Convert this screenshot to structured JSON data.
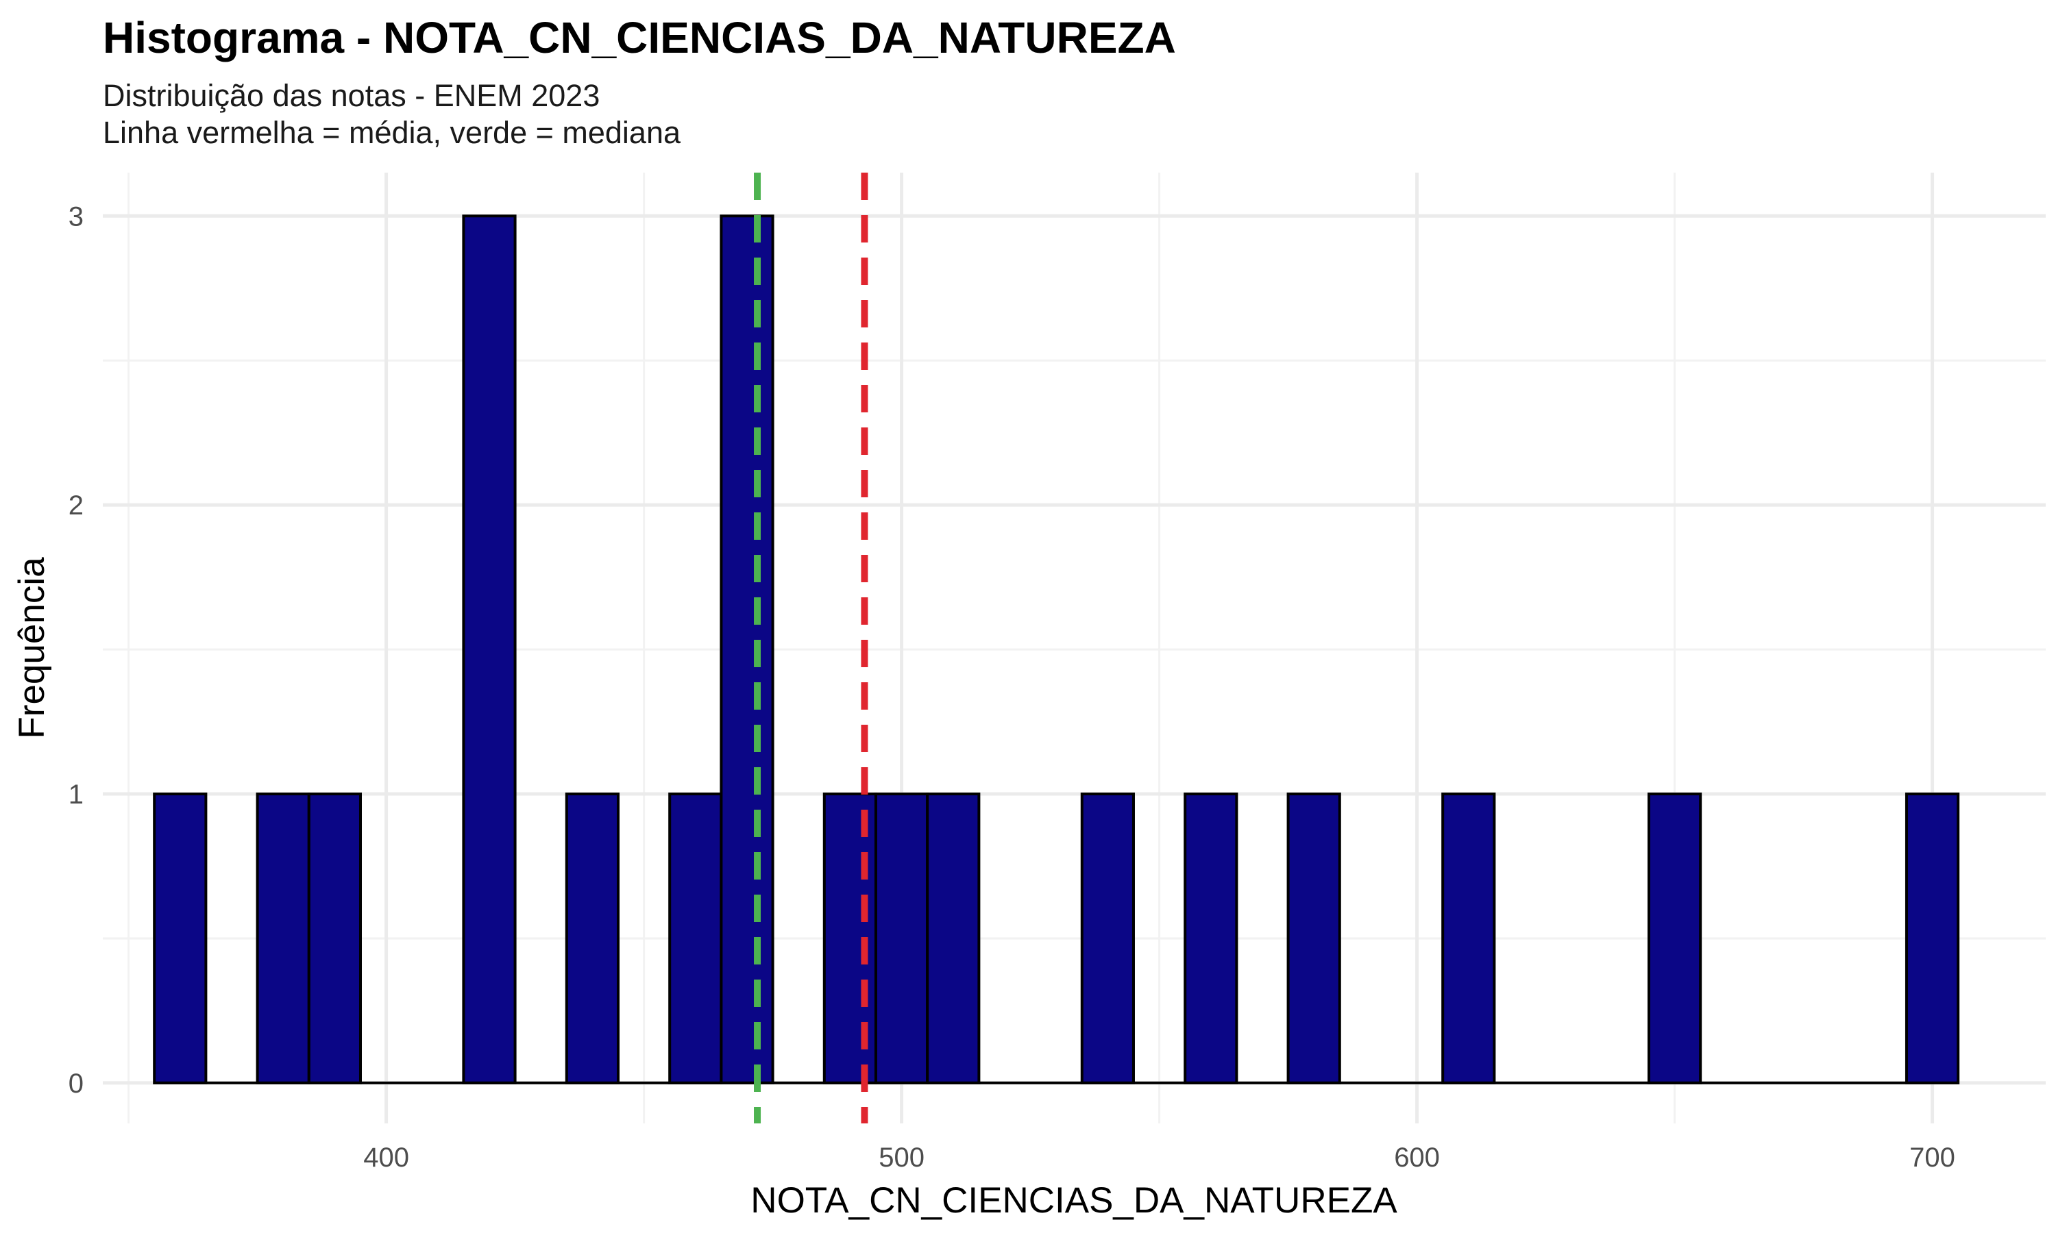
{
  "chart_data": {
    "type": "bar",
    "title": "Histograma - NOTA_CN_CIENCIAS_DA_NATUREZA",
    "subtitle_lines": [
      "Distribuição das notas - ENEM 2023",
      "Linha vermelha = média, verde = mediana"
    ],
    "xlabel": "NOTA_CN_CIENCIAS_DA_NATUREZA",
    "ylabel": "Frequência",
    "xlim": [
      345,
      722
    ],
    "ylim": [
      -0.14,
      3.15
    ],
    "x_ticks": [
      400,
      500,
      600,
      700
    ],
    "y_ticks": [
      0,
      1,
      2,
      3
    ],
    "grid": true,
    "bin_width": 10,
    "bins": [
      {
        "start": 355,
        "end": 365,
        "count": 1
      },
      {
        "start": 365,
        "end": 375,
        "count": 0
      },
      {
        "start": 375,
        "end": 385,
        "count": 1
      },
      {
        "start": 385,
        "end": 395,
        "count": 1
      },
      {
        "start": 395,
        "end": 405,
        "count": 0
      },
      {
        "start": 405,
        "end": 415,
        "count": 0
      },
      {
        "start": 415,
        "end": 425,
        "count": 3
      },
      {
        "start": 425,
        "end": 435,
        "count": 0
      },
      {
        "start": 435,
        "end": 445,
        "count": 1
      },
      {
        "start": 445,
        "end": 455,
        "count": 0
      },
      {
        "start": 455,
        "end": 465,
        "count": 1
      },
      {
        "start": 465,
        "end": 475,
        "count": 3
      },
      {
        "start": 475,
        "end": 485,
        "count": 0
      },
      {
        "start": 485,
        "end": 495,
        "count": 1
      },
      {
        "start": 495,
        "end": 505,
        "count": 1
      },
      {
        "start": 505,
        "end": 515,
        "count": 1
      },
      {
        "start": 515,
        "end": 525,
        "count": 0
      },
      {
        "start": 525,
        "end": 535,
        "count": 0
      },
      {
        "start": 535,
        "end": 545,
        "count": 1
      },
      {
        "start": 545,
        "end": 555,
        "count": 0
      },
      {
        "start": 555,
        "end": 565,
        "count": 1
      },
      {
        "start": 565,
        "end": 575,
        "count": 0
      },
      {
        "start": 575,
        "end": 585,
        "count": 1
      },
      {
        "start": 585,
        "end": 595,
        "count": 0
      },
      {
        "start": 595,
        "end": 605,
        "count": 0
      },
      {
        "start": 605,
        "end": 615,
        "count": 1
      },
      {
        "start": 615,
        "end": 625,
        "count": 0
      },
      {
        "start": 625,
        "end": 635,
        "count": 0
      },
      {
        "start": 635,
        "end": 645,
        "count": 0
      },
      {
        "start": 645,
        "end": 655,
        "count": 1
      },
      {
        "start": 655,
        "end": 665,
        "count": 0
      },
      {
        "start": 665,
        "end": 675,
        "count": 0
      },
      {
        "start": 675,
        "end": 685,
        "count": 0
      },
      {
        "start": 685,
        "end": 695,
        "count": 0
      },
      {
        "start": 695,
        "end": 705,
        "count": 1
      }
    ],
    "mean": 492.8,
    "median": 472,
    "colors": {
      "bar_fill": "#0b0686",
      "bar_outline": "#000000",
      "mean_line": "#e0262f",
      "median_line": "#4db350"
    }
  }
}
